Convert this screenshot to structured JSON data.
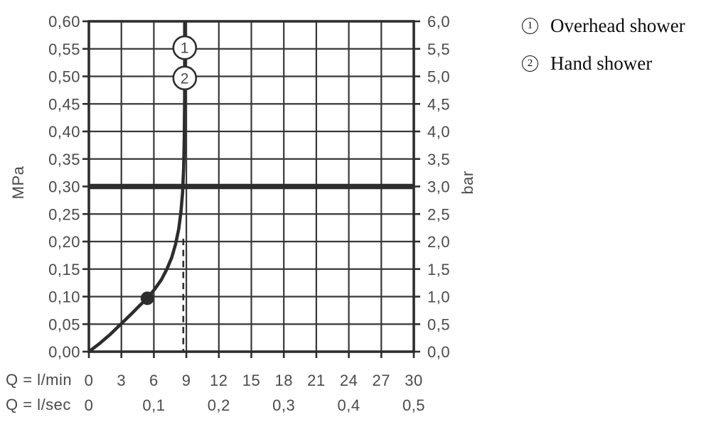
{
  "legend": {
    "items": [
      {
        "marker": "1",
        "label": "Overhead shower"
      },
      {
        "marker": "2",
        "label": "Hand shower"
      }
    ]
  },
  "chart_data": {
    "type": "line",
    "grid": true,
    "legend_position": "top-right",
    "x_axis_primary": {
      "label": "Q = l/min",
      "min": 0,
      "max": 30,
      "step": 3,
      "ticks": [
        {
          "v": 0,
          "label": "0"
        },
        {
          "v": 3,
          "label": "3"
        },
        {
          "v": 6,
          "label": "6"
        },
        {
          "v": 9,
          "label": "9"
        },
        {
          "v": 12,
          "label": "12"
        },
        {
          "v": 15,
          "label": "15"
        },
        {
          "v": 18,
          "label": "18"
        },
        {
          "v": 21,
          "label": "21"
        },
        {
          "v": 24,
          "label": "24"
        },
        {
          "v": 27,
          "label": "27"
        },
        {
          "v": 30,
          "label": "30"
        }
      ]
    },
    "x_axis_secondary": {
      "label": "Q = l/sec",
      "ticks": [
        {
          "v": 0,
          "label": "0"
        },
        {
          "v": 6,
          "label": "0,1"
        },
        {
          "v": 12,
          "label": "0,2"
        },
        {
          "v": 18,
          "label": "0,3"
        },
        {
          "v": 24,
          "label": "0,4"
        },
        {
          "v": 30,
          "label": "0,5"
        }
      ]
    },
    "y_axis_left": {
      "label": "MPa",
      "min": 0,
      "max": 0.6,
      "step": 0.05,
      "ticks": [
        {
          "v": 0.6,
          "label": "0,60"
        },
        {
          "v": 0.55,
          "label": "0,55"
        },
        {
          "v": 0.5,
          "label": "0,50"
        },
        {
          "v": 0.45,
          "label": "0,45"
        },
        {
          "v": 0.4,
          "label": "0,40"
        },
        {
          "v": 0.35,
          "label": "0,35"
        },
        {
          "v": 0.3,
          "label": "0,30"
        },
        {
          "v": 0.25,
          "label": "0,25"
        },
        {
          "v": 0.2,
          "label": "0,20"
        },
        {
          "v": 0.15,
          "label": "0,15"
        },
        {
          "v": 0.1,
          "label": "0,10"
        },
        {
          "v": 0.05,
          "label": "0,05"
        },
        {
          "v": 0.0,
          "label": "0,00"
        }
      ]
    },
    "y_axis_right": {
      "label": "bar",
      "ticks": [
        {
          "v": 0.6,
          "label": "6,0"
        },
        {
          "v": 0.55,
          "label": "5,5"
        },
        {
          "v": 0.5,
          "label": "5,0"
        },
        {
          "v": 0.45,
          "label": "4,5"
        },
        {
          "v": 0.4,
          "label": "4,0"
        },
        {
          "v": 0.35,
          "label": "3,5"
        },
        {
          "v": 0.3,
          "label": "3,0"
        },
        {
          "v": 0.25,
          "label": "2,5"
        },
        {
          "v": 0.2,
          "label": "2,0"
        },
        {
          "v": 0.15,
          "label": "1,5"
        },
        {
          "v": 0.1,
          "label": "1,0"
        },
        {
          "v": 0.05,
          "label": "0,5"
        },
        {
          "v": 0.0,
          "label": "0,0"
        }
      ]
    },
    "reference_line": {
      "p_mpa": 0.3,
      "bar": 3.0
    },
    "series": [
      {
        "name": "flow-pressure-curve",
        "points": [
          [
            0,
            0
          ],
          [
            1,
            0.015
          ],
          [
            2,
            0.032
          ],
          [
            3,
            0.051
          ],
          [
            4,
            0.07
          ],
          [
            4.7,
            0.084
          ],
          [
            5.4,
            0.097
          ],
          [
            6.1,
            0.114
          ],
          [
            6.7,
            0.131
          ],
          [
            7.2,
            0.15
          ],
          [
            7.65,
            0.171
          ],
          [
            8.0,
            0.195
          ],
          [
            8.3,
            0.223
          ],
          [
            8.5,
            0.254
          ],
          [
            8.65,
            0.289
          ],
          [
            8.75,
            0.334
          ],
          [
            8.81,
            0.39
          ],
          [
            8.84,
            0.46
          ],
          [
            8.85,
            0.63
          ]
        ]
      }
    ],
    "markers": [
      {
        "label": "1",
        "name": "Overhead shower",
        "q": 8.85,
        "p": 0.552
      },
      {
        "label": "2",
        "name": "Hand shower",
        "q": 8.85,
        "p": 0.497
      }
    ],
    "operating_point": {
      "q": 5.4,
      "p": 0.097
    },
    "guide_line": {
      "q": 8.72,
      "p_top": 0.205
    },
    "colors": {
      "line": "#2d2d2d",
      "grid": "#383838",
      "label": "#4b4b4b",
      "marker_fill": "#ffffff",
      "legend_text": "#0e0e0e",
      "background": "#ffffff"
    }
  }
}
